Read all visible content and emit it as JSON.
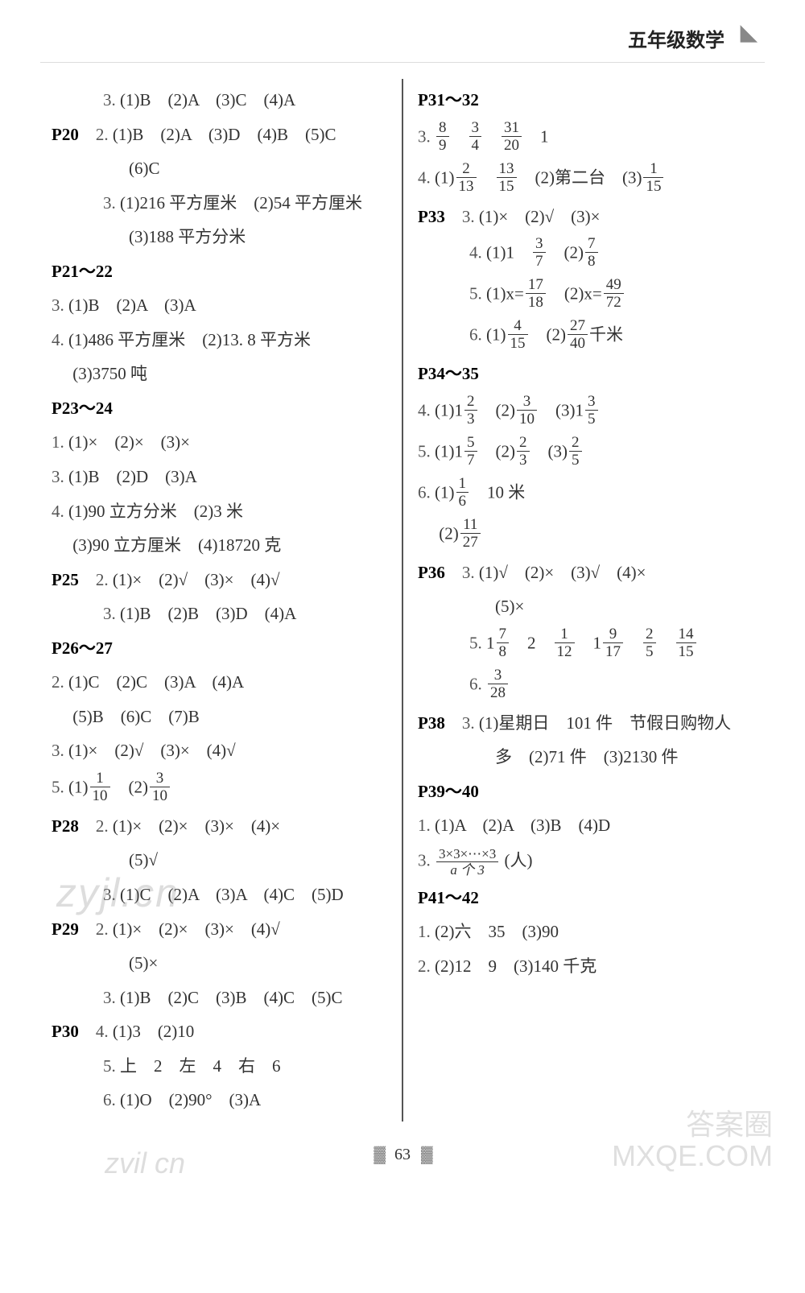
{
  "header": {
    "title": "五年级数学",
    "icon": "◣"
  },
  "pagenum": "63",
  "watermarks": {
    "w1": "zyjl.cn",
    "w2": "答案圈\nMXQE.COM",
    "w3": "zvil cn"
  },
  "left": [
    {
      "indent": 1,
      "parts": [
        {
          "t": "q",
          "v": "3."
        },
        {
          "t": "txt",
          "v": " (1)B　(2)A　(3)C　(4)A"
        }
      ]
    },
    {
      "parts": [
        {
          "t": "pb",
          "v": "P20"
        },
        {
          "t": "txt",
          "v": "　"
        },
        {
          "t": "q",
          "v": "2."
        },
        {
          "t": "txt",
          "v": " (1)B　(2)A　(3)D　(4)B　(5)C"
        }
      ]
    },
    {
      "indent": 2,
      "parts": [
        {
          "t": "txt",
          "v": "(6)C"
        }
      ]
    },
    {
      "indent": 1,
      "parts": [
        {
          "t": "q",
          "v": "3."
        },
        {
          "t": "txt",
          "v": " (1)216 平方厘米　(2)54 平方厘米"
        }
      ]
    },
    {
      "indent": 2,
      "parts": [
        {
          "t": "txt",
          "v": "(3)188 平方分米"
        }
      ]
    },
    {
      "parts": [
        {
          "t": "pb",
          "v": "P21～22"
        }
      ]
    },
    {
      "parts": [
        {
          "t": "q",
          "v": "3."
        },
        {
          "t": "txt",
          "v": " (1)B　(2)A　(3)A"
        }
      ]
    },
    {
      "parts": [
        {
          "t": "q",
          "v": "4."
        },
        {
          "t": "txt",
          "v": " (1)486 平方厘米　(2)13. 8 平方米"
        }
      ]
    },
    {
      "indent": 0,
      "parts": [
        {
          "t": "txt",
          "v": "　 (3)3750 吨"
        }
      ]
    },
    {
      "parts": [
        {
          "t": "pb",
          "v": "P23～24"
        }
      ]
    },
    {
      "parts": [
        {
          "t": "q",
          "v": "1."
        },
        {
          "t": "txt",
          "v": " (1)×　(2)×　(3)×"
        }
      ]
    },
    {
      "parts": [
        {
          "t": "q",
          "v": "3."
        },
        {
          "t": "txt",
          "v": " (1)B　(2)D　(3)A"
        }
      ]
    },
    {
      "parts": [
        {
          "t": "q",
          "v": "4."
        },
        {
          "t": "txt",
          "v": " (1)90 立方分米　(2)3 米"
        }
      ]
    },
    {
      "parts": [
        {
          "t": "txt",
          "v": "　 (3)90 立方厘米　(4)18720 克"
        }
      ]
    },
    {
      "parts": [
        {
          "t": "pb",
          "v": "P25"
        },
        {
          "t": "txt",
          "v": "　"
        },
        {
          "t": "q",
          "v": "2."
        },
        {
          "t": "txt",
          "v": " (1)×　(2)√　(3)×　(4)√"
        }
      ]
    },
    {
      "indent": 1,
      "parts": [
        {
          "t": "q",
          "v": "3."
        },
        {
          "t": "txt",
          "v": " (1)B　(2)B　(3)D　(4)A"
        }
      ]
    },
    {
      "parts": [
        {
          "t": "pb",
          "v": "P26～27"
        }
      ]
    },
    {
      "parts": [
        {
          "t": "q",
          "v": "2."
        },
        {
          "t": "txt",
          "v": " (1)C　(2)C　(3)A　(4)A"
        }
      ]
    },
    {
      "parts": [
        {
          "t": "txt",
          "v": "　 (5)B　(6)C　(7)B"
        }
      ]
    },
    {
      "parts": [
        {
          "t": "q",
          "v": "3."
        },
        {
          "t": "txt",
          "v": " (1)×　(2)√　(3)×　(4)√"
        }
      ]
    },
    {
      "parts": [
        {
          "t": "q",
          "v": "5."
        },
        {
          "t": "txt",
          "v": " (1)"
        },
        {
          "t": "frac",
          "n": "1",
          "d": "10"
        },
        {
          "t": "txt",
          "v": "　(2)"
        },
        {
          "t": "frac",
          "n": "3",
          "d": "10"
        }
      ]
    },
    {
      "parts": [
        {
          "t": "pb",
          "v": "P28"
        },
        {
          "t": "txt",
          "v": "　"
        },
        {
          "t": "q",
          "v": "2."
        },
        {
          "t": "txt",
          "v": " (1)×　(2)×　(3)×　(4)×"
        }
      ]
    },
    {
      "indent": 2,
      "parts": [
        {
          "t": "txt",
          "v": "(5)√"
        }
      ]
    },
    {
      "indent": 1,
      "parts": [
        {
          "t": "q",
          "v": "3."
        },
        {
          "t": "txt",
          "v": " (1)C　(2)A　(3)A　(4)C　(5)D"
        }
      ]
    },
    {
      "parts": [
        {
          "t": "pb",
          "v": "P29"
        },
        {
          "t": "txt",
          "v": "　"
        },
        {
          "t": "q",
          "v": "2."
        },
        {
          "t": "txt",
          "v": " (1)×　(2)×　(3)×　(4)√"
        }
      ]
    },
    {
      "indent": 2,
      "parts": [
        {
          "t": "txt",
          "v": "(5)×"
        }
      ]
    },
    {
      "indent": 1,
      "parts": [
        {
          "t": "q",
          "v": "3."
        },
        {
          "t": "txt",
          "v": " (1)B　(2)C　(3)B　(4)C　(5)C"
        }
      ]
    },
    {
      "parts": [
        {
          "t": "pb",
          "v": "P30"
        },
        {
          "t": "txt",
          "v": "　"
        },
        {
          "t": "q",
          "v": "4."
        },
        {
          "t": "txt",
          "v": " (1)3　(2)10"
        }
      ]
    },
    {
      "indent": 1,
      "parts": [
        {
          "t": "q",
          "v": "5."
        },
        {
          "t": "txt",
          "v": " 上　2　左　4　右　6"
        }
      ]
    },
    {
      "indent": 1,
      "parts": [
        {
          "t": "q",
          "v": "6."
        },
        {
          "t": "txt",
          "v": " (1)O　(2)90°　(3)A"
        }
      ]
    }
  ],
  "right": [
    {
      "parts": [
        {
          "t": "pb",
          "v": "P31～32"
        }
      ]
    },
    {
      "parts": [
        {
          "t": "q",
          "v": "3."
        },
        {
          "t": "txt",
          "v": " "
        },
        {
          "t": "frac",
          "n": "8",
          "d": "9"
        },
        {
          "t": "txt",
          "v": "　"
        },
        {
          "t": "frac",
          "n": "3",
          "d": "4"
        },
        {
          "t": "txt",
          "v": "　"
        },
        {
          "t": "frac",
          "n": "31",
          "d": "20"
        },
        {
          "t": "txt",
          "v": "　1"
        }
      ]
    },
    {
      "parts": [
        {
          "t": "q",
          "v": "4."
        },
        {
          "t": "txt",
          "v": " (1)"
        },
        {
          "t": "frac",
          "n": "2",
          "d": "13"
        },
        {
          "t": "txt",
          "v": "　"
        },
        {
          "t": "frac",
          "n": "13",
          "d": "15"
        },
        {
          "t": "txt",
          "v": "　(2)第二台　(3)"
        },
        {
          "t": "frac",
          "n": "1",
          "d": "15"
        }
      ]
    },
    {
      "parts": [
        {
          "t": "pb",
          "v": "P33"
        },
        {
          "t": "txt",
          "v": "　"
        },
        {
          "t": "q",
          "v": "3."
        },
        {
          "t": "txt",
          "v": " (1)×　(2)√　(3)×"
        }
      ]
    },
    {
      "indent": 1,
      "parts": [
        {
          "t": "q",
          "v": "4."
        },
        {
          "t": "txt",
          "v": " (1)1　"
        },
        {
          "t": "frac",
          "n": "3",
          "d": "7"
        },
        {
          "t": "txt",
          "v": "　(2)"
        },
        {
          "t": "frac",
          "n": "7",
          "d": "8"
        }
      ]
    },
    {
      "indent": 1,
      "parts": [
        {
          "t": "q",
          "v": "5."
        },
        {
          "t": "txt",
          "v": " (1)x="
        },
        {
          "t": "frac",
          "n": "17",
          "d": "18"
        },
        {
          "t": "txt",
          "v": "　(2)x="
        },
        {
          "t": "frac",
          "n": "49",
          "d": "72"
        }
      ]
    },
    {
      "indent": 1,
      "parts": [
        {
          "t": "q",
          "v": "6."
        },
        {
          "t": "txt",
          "v": " (1)"
        },
        {
          "t": "frac",
          "n": "4",
          "d": "15"
        },
        {
          "t": "txt",
          "v": "　(2)"
        },
        {
          "t": "frac",
          "n": "27",
          "d": "40"
        },
        {
          "t": "txt",
          "v": "千米"
        }
      ]
    },
    {
      "parts": [
        {
          "t": "pb",
          "v": "P34～35"
        }
      ]
    },
    {
      "parts": [
        {
          "t": "q",
          "v": "4."
        },
        {
          "t": "txt",
          "v": " (1)1"
        },
        {
          "t": "frac",
          "n": "2",
          "d": "3"
        },
        {
          "t": "txt",
          "v": "　(2)"
        },
        {
          "t": "frac",
          "n": "3",
          "d": "10"
        },
        {
          "t": "txt",
          "v": "　(3)1"
        },
        {
          "t": "frac",
          "n": "3",
          "d": "5"
        }
      ]
    },
    {
      "parts": [
        {
          "t": "q",
          "v": "5."
        },
        {
          "t": "txt",
          "v": " (1)1"
        },
        {
          "t": "frac",
          "n": "5",
          "d": "7"
        },
        {
          "t": "txt",
          "v": "　(2)"
        },
        {
          "t": "frac",
          "n": "2",
          "d": "3"
        },
        {
          "t": "txt",
          "v": "　(3)"
        },
        {
          "t": "frac",
          "n": "2",
          "d": "5"
        }
      ]
    },
    {
      "parts": [
        {
          "t": "q",
          "v": "6."
        },
        {
          "t": "txt",
          "v": " (1)"
        },
        {
          "t": "frac",
          "n": "1",
          "d": "6"
        },
        {
          "t": "txt",
          "v": "　10 米"
        }
      ]
    },
    {
      "parts": [
        {
          "t": "txt",
          "v": "　 (2)"
        },
        {
          "t": "frac",
          "n": "11",
          "d": "27"
        }
      ]
    },
    {
      "parts": [
        {
          "t": "pb",
          "v": "P36"
        },
        {
          "t": "txt",
          "v": "　"
        },
        {
          "t": "q",
          "v": "3."
        },
        {
          "t": "txt",
          "v": " (1)√　(2)×　(3)√　(4)×"
        }
      ]
    },
    {
      "indent": 2,
      "parts": [
        {
          "t": "txt",
          "v": "(5)×"
        }
      ]
    },
    {
      "indent": 1,
      "parts": [
        {
          "t": "q",
          "v": "5."
        },
        {
          "t": "txt",
          "v": " 1"
        },
        {
          "t": "frac",
          "n": "7",
          "d": "8"
        },
        {
          "t": "txt",
          "v": "　2　"
        },
        {
          "t": "frac",
          "n": "1",
          "d": "12"
        },
        {
          "t": "txt",
          "v": "　1"
        },
        {
          "t": "frac",
          "n": "9",
          "d": "17"
        },
        {
          "t": "txt",
          "v": "　"
        },
        {
          "t": "frac",
          "n": "2",
          "d": "5"
        },
        {
          "t": "txt",
          "v": "　"
        },
        {
          "t": "frac",
          "n": "14",
          "d": "15"
        }
      ]
    },
    {
      "indent": 1,
      "parts": [
        {
          "t": "q",
          "v": "6."
        },
        {
          "t": "txt",
          "v": " "
        },
        {
          "t": "frac",
          "n": "3",
          "d": "28"
        }
      ]
    },
    {
      "parts": [
        {
          "t": "pb",
          "v": "P38"
        },
        {
          "t": "txt",
          "v": "　"
        },
        {
          "t": "q",
          "v": "3."
        },
        {
          "t": "txt",
          "v": " (1)星期日　101 件　节假日购物人"
        }
      ]
    },
    {
      "indent": 2,
      "parts": [
        {
          "t": "txt",
          "v": "多　(2)71 件　(3)2130 件"
        }
      ]
    },
    {
      "parts": [
        {
          "t": "pb",
          "v": "P39～40"
        }
      ]
    },
    {
      "parts": [
        {
          "t": "q",
          "v": "1."
        },
        {
          "t": "txt",
          "v": " (1)A　(2)A　(3)B　(4)D"
        }
      ]
    },
    {
      "parts": [
        {
          "t": "q",
          "v": "3."
        },
        {
          "t": "txt",
          "v": " "
        },
        {
          "t": "cfrac",
          "n": "3×3×⋯×3",
          "d": "a 个 3"
        },
        {
          "t": "txt",
          "v": " (人)"
        }
      ]
    },
    {
      "parts": [
        {
          "t": "pb",
          "v": "P41～42"
        }
      ]
    },
    {
      "parts": [
        {
          "t": "q",
          "v": "1."
        },
        {
          "t": "txt",
          "v": " (2)六　35　(3)90"
        }
      ]
    },
    {
      "parts": [
        {
          "t": "q",
          "v": "2."
        },
        {
          "t": "txt",
          "v": " (2)12　9　(3)140 千克"
        }
      ]
    }
  ]
}
